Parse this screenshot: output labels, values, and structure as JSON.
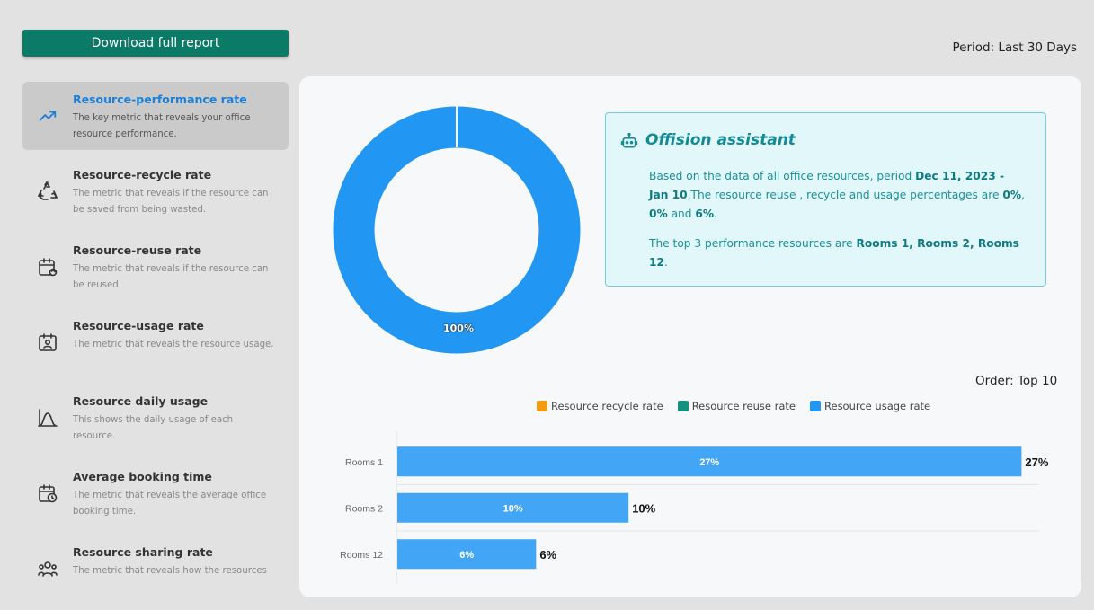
{
  "header": {
    "download_label": "Download full report",
    "period_label": "Period: Last 30 Days"
  },
  "sidebar": {
    "items": [
      {
        "title": "Resource-performance rate",
        "desc": "The key metric that reveals your office resource performance.",
        "icon": "trend-up-icon",
        "active": true
      },
      {
        "title": "Resource-recycle rate",
        "desc": "The metric that reveals if the resource can be saved from being wasted.",
        "icon": "recycle-icon"
      },
      {
        "title": "Resource-reuse rate",
        "desc": "The metric that reveals if the resource can be reused.",
        "icon": "calendar-refresh-icon"
      },
      {
        "title": "Resource-usage rate",
        "desc": "The metric that reveals the resource usage.",
        "icon": "calendar-user-icon"
      },
      {
        "title": "Resource daily usage",
        "desc": "This shows the daily usage of each resource.",
        "icon": "bell-curve-icon"
      },
      {
        "title": "Average booking time",
        "desc": "The metric that reveals the average office booking time.",
        "icon": "calendar-clock-icon"
      },
      {
        "title": "Resource sharing rate",
        "desc": "The metric that reveals how the resources",
        "icon": "people-group-icon"
      }
    ]
  },
  "donut": {
    "label": "100%",
    "color": "#2196f3"
  },
  "assistant": {
    "title": "Offision assistant",
    "icon": "robot-icon",
    "p1_pre": "Based on the data of all office resources, period ",
    "p1_period": "Dec 11, 2023 - Jan 10",
    "p1_mid": ",The resource reuse , recycle and usage percentages are ",
    "p1_v1": "0%",
    "p1_sep1": ", ",
    "p1_v2": "0%",
    "p1_sep2": " and ",
    "p1_v3": "6%",
    "p1_end": ".",
    "p2_pre": "The top 3 performance resources are ",
    "p2_rooms": "Rooms 1, Rooms 2, Rooms 12",
    "p2_end": "."
  },
  "order_label": "Order: Top 10",
  "legend": [
    {
      "label": "Resource recycle rate",
      "color": "#f39c12"
    },
    {
      "label": "Resource reuse rate",
      "color": "#16917f"
    },
    {
      "label": "Resource usage rate",
      "color": "#2196f3"
    }
  ],
  "chart_data": {
    "type": "bar",
    "orientation": "horizontal",
    "categories": [
      "Rooms 1",
      "Rooms 2",
      "Rooms 12"
    ],
    "series": [
      {
        "name": "Resource usage rate",
        "values": [
          27,
          10,
          6
        ],
        "color": "#42a5f5"
      }
    ],
    "value_labels": [
      "27%",
      "10%",
      "6%"
    ],
    "xlim": [
      0,
      27.8
    ]
  }
}
